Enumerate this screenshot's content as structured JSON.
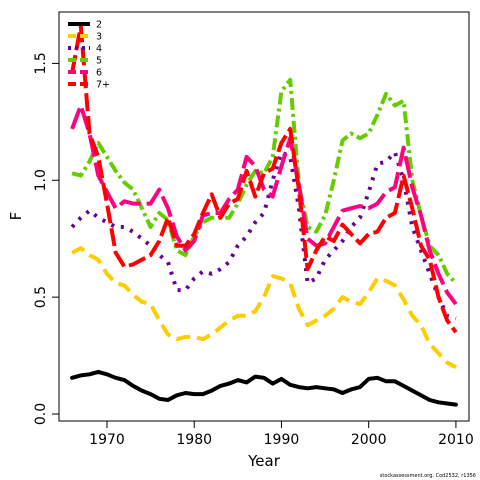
{
  "chart_data": {
    "type": "line",
    "xlabel": "Year",
    "ylabel": "F",
    "xlim": [
      1964.5,
      2011.5
    ],
    "ylim": [
      -0.03,
      1.72
    ],
    "xticks": [
      1970,
      1980,
      1990,
      2000,
      2010
    ],
    "xtick_labels": [
      "1970",
      "1980",
      "1990",
      "2000",
      "2010"
    ],
    "yticks": [
      0.0,
      0.5,
      1.0,
      1.5
    ],
    "ytick_labels": [
      "0.0",
      "0.5",
      "1.0",
      "1.5"
    ],
    "legend_position": "top-left",
    "credit": "stockassessment.org, Cod2532, r1356",
    "x": [
      1966,
      1967,
      1968,
      1969,
      1970,
      1971,
      1972,
      1973,
      1974,
      1975,
      1976,
      1977,
      1978,
      1979,
      1980,
      1981,
      1982,
      1983,
      1984,
      1985,
      1986,
      1987,
      1988,
      1989,
      1990,
      1991,
      1992,
      1993,
      1994,
      1995,
      1996,
      1997,
      1998,
      1999,
      2000,
      2001,
      2002,
      2003,
      2004,
      2005,
      2006,
      2007,
      2008,
      2009,
      2010
    ],
    "series": [
      {
        "name": "2",
        "color": "#000000",
        "dash": "",
        "values": [
          0.155,
          0.165,
          0.17,
          0.18,
          0.17,
          0.155,
          0.145,
          0.12,
          0.1,
          0.085,
          0.065,
          0.06,
          0.08,
          0.09,
          0.085,
          0.085,
          0.1,
          0.12,
          0.13,
          0.145,
          0.135,
          0.16,
          0.155,
          0.13,
          0.15,
          0.125,
          0.115,
          0.11,
          0.115,
          0.11,
          0.105,
          0.09,
          0.105,
          0.115,
          0.15,
          0.155,
          0.14,
          0.14,
          0.12,
          0.1,
          0.08,
          0.06,
          0.05,
          0.045,
          0.04
        ]
      },
      {
        "name": "3",
        "color": "#FFCC00",
        "dash": "14,7",
        "values": [
          0.69,
          0.71,
          0.68,
          0.66,
          0.6,
          0.56,
          0.55,
          0.51,
          0.48,
          0.47,
          0.4,
          0.34,
          0.32,
          0.33,
          0.33,
          0.32,
          0.34,
          0.37,
          0.4,
          0.42,
          0.42,
          0.44,
          0.5,
          0.59,
          0.58,
          0.56,
          0.45,
          0.38,
          0.4,
          0.42,
          0.45,
          0.5,
          0.48,
          0.47,
          0.52,
          0.58,
          0.57,
          0.55,
          0.49,
          0.42,
          0.38,
          0.3,
          0.26,
          0.22,
          0.2
        ]
      },
      {
        "name": "4",
        "color": "#660099",
        "dash": "3,7",
        "values": [
          0.8,
          0.84,
          0.87,
          0.84,
          0.82,
          0.8,
          0.8,
          0.78,
          0.75,
          0.72,
          0.68,
          0.65,
          0.53,
          0.53,
          0.58,
          0.61,
          0.6,
          0.62,
          0.65,
          0.72,
          0.76,
          0.82,
          0.86,
          1.0,
          1.12,
          1.1,
          0.88,
          0.56,
          0.58,
          0.66,
          0.7,
          0.74,
          0.8,
          0.84,
          0.95,
          1.07,
          1.08,
          1.12,
          1.0,
          0.8,
          0.7,
          0.6,
          0.5,
          0.42,
          0.41
        ]
      },
      {
        "name": "5",
        "color": "#66CC00",
        "dash": "12,4,3,4",
        "values": [
          1.03,
          1.02,
          1.08,
          1.16,
          1.1,
          1.04,
          0.99,
          0.96,
          0.88,
          0.8,
          0.86,
          0.83,
          0.7,
          0.68,
          0.76,
          0.82,
          0.84,
          0.84,
          0.84,
          0.9,
          0.98,
          1.04,
          1.03,
          1.1,
          1.38,
          1.43,
          0.98,
          0.8,
          0.78,
          0.85,
          1.0,
          1.17,
          1.2,
          1.18,
          1.2,
          1.28,
          1.37,
          1.32,
          1.34,
          1.0,
          0.85,
          0.72,
          0.68,
          0.6,
          0.56
        ]
      },
      {
        "name": "6",
        "color": "#FF0080",
        "dash": "22,6",
        "values": [
          1.22,
          1.32,
          1.2,
          1.02,
          0.95,
          0.88,
          0.91,
          0.9,
          0.9,
          0.9,
          0.96,
          0.88,
          0.76,
          0.7,
          0.74,
          0.85,
          0.86,
          0.86,
          0.92,
          0.96,
          1.1,
          1.06,
          0.96,
          0.93,
          1.06,
          1.18,
          0.98,
          0.75,
          0.72,
          0.73,
          0.8,
          0.87,
          0.88,
          0.89,
          0.88,
          0.9,
          0.95,
          0.97,
          1.14,
          0.97,
          0.85,
          0.7,
          0.6,
          0.52,
          0.47
        ]
      },
      {
        "name": "7+",
        "color": "#FF0000",
        "dash": "18,5",
        "values": [
          1.46,
          1.66,
          1.2,
          1.1,
          0.9,
          0.69,
          0.63,
          0.64,
          0.66,
          0.68,
          0.74,
          0.84,
          0.72,
          0.72,
          0.77,
          0.86,
          0.94,
          0.84,
          0.9,
          0.92,
          1.04,
          0.93,
          1.03,
          1.05,
          1.16,
          1.22,
          0.96,
          0.62,
          0.7,
          0.76,
          0.74,
          0.81,
          0.77,
          0.73,
          0.77,
          0.78,
          0.84,
          0.86,
          1.02,
          0.88,
          0.72,
          0.66,
          0.5,
          0.4,
          0.35
        ]
      }
    ]
  }
}
